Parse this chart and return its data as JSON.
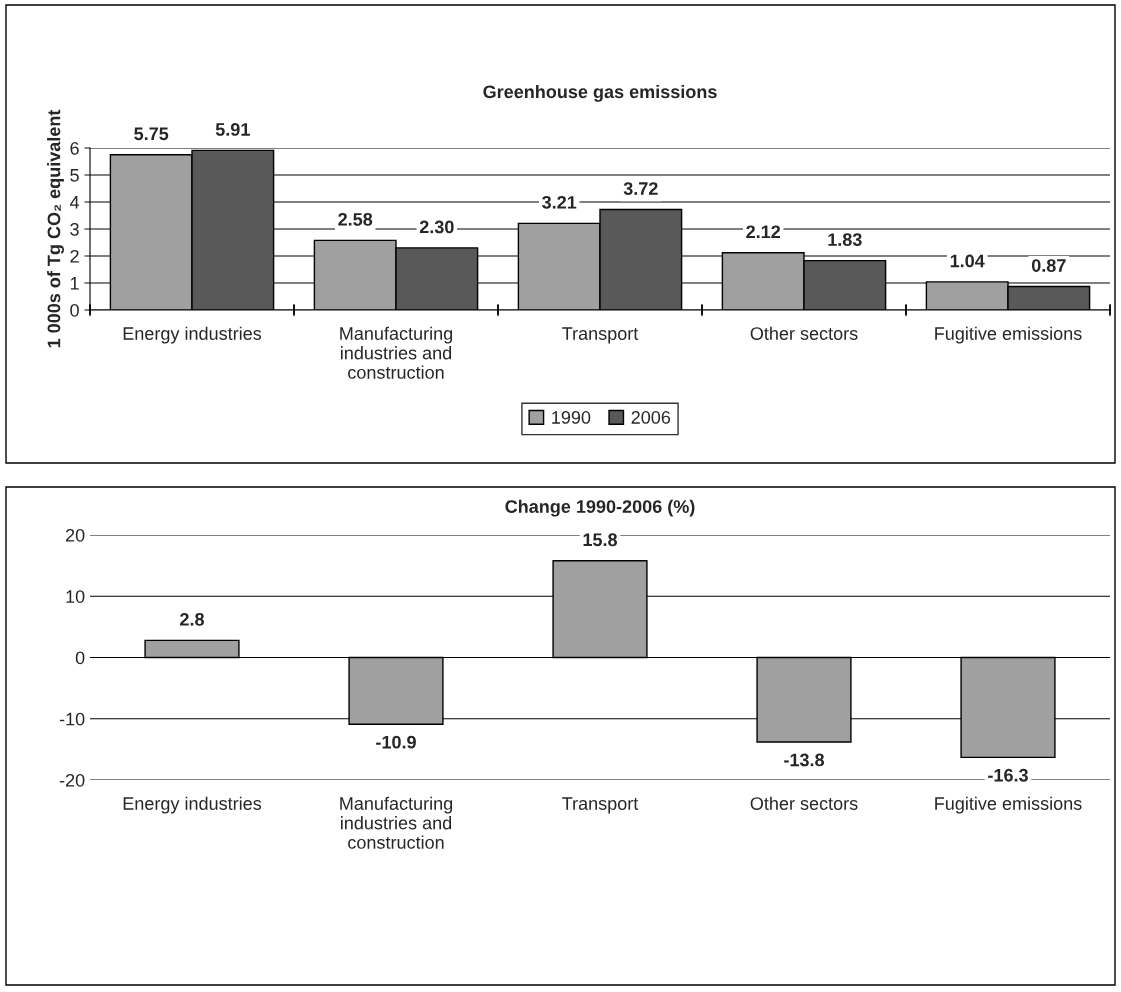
{
  "chart_data": [
    {
      "type": "bar",
      "title": "Greenhouse gas emissions",
      "ylabel": "1 000s of Tg CO₂ equivalent",
      "categories": [
        "Energy industries",
        "Manufacturing\nindustries and\nconstruction",
        "Transport",
        "Other sectors",
        "Fugitive emissions"
      ],
      "series": [
        {
          "name": "1990",
          "color": "#a0a0a0",
          "values": [
            5.75,
            2.58,
            3.21,
            2.12,
            1.04
          ],
          "value_labels": [
            "5.75",
            "2.58",
            "3.21",
            "2.12",
            "1.04"
          ]
        },
        {
          "name": "2006",
          "color": "#595959",
          "values": [
            5.91,
            2.3,
            3.72,
            1.83,
            0.87
          ],
          "value_labels": [
            "5.91",
            "2.30",
            "3.72",
            "1.83",
            "0.87"
          ]
        }
      ],
      "ylim": [
        0,
        6
      ],
      "yticks": [
        0,
        1,
        2,
        3,
        4,
        5,
        6
      ],
      "grid": "y",
      "legend": "bottom"
    },
    {
      "type": "bar",
      "title": "Change 1990-2006 (%)",
      "categories": [
        "Energy industries",
        "Manufacturing\nindustries and\nconstruction",
        "Transport",
        "Other sectors",
        "Fugitive emissions"
      ],
      "series": [
        {
          "color": "#a0a0a0",
          "values": [
            2.8,
            -10.9,
            15.8,
            -13.8,
            -16.3
          ],
          "value_labels": [
            "2.8",
            "-10.9",
            "15.8",
            "-13.8",
            "-16.3"
          ]
        }
      ],
      "ylim": [
        -20,
        20
      ],
      "yticks": [
        -20,
        -10,
        0,
        10,
        20
      ],
      "grid": "y",
      "legend": false
    }
  ]
}
